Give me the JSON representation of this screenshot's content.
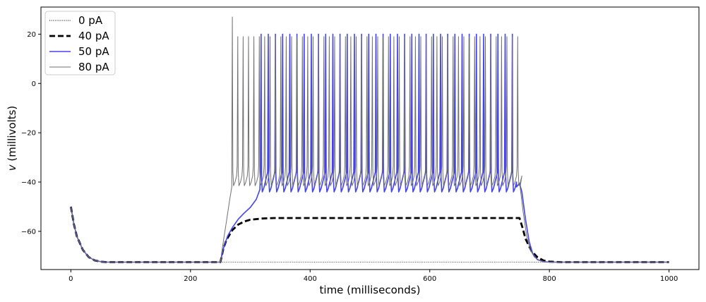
{
  "chart_data": {
    "type": "line",
    "xlabel": "time (milliseconds)",
    "ylabel_italic": "v",
    "ylabel_rest": " (millivolts)",
    "xlim": [
      -50,
      1050
    ],
    "ylim": [
      -75.5,
      31
    ],
    "xticks": [
      0,
      200,
      400,
      600,
      800,
      1000
    ],
    "yticks": [
      20,
      0,
      -20,
      -40,
      -60
    ],
    "grid": false,
    "legend_position": "top-left",
    "stimulus_on": 250,
    "stimulus_off": 750,
    "resting_potential": -72.5,
    "series": [
      {
        "name": "0 pA",
        "style": "dotted",
        "color": "#000000",
        "width": 0.8,
        "points": [
          [
            0,
            -50
          ],
          [
            5,
            -57
          ],
          [
            10,
            -62
          ],
          [
            20,
            -67.5
          ],
          [
            30,
            -70.5
          ],
          [
            40,
            -71.8
          ],
          [
            50,
            -72.3
          ],
          [
            60,
            -72.5
          ],
          [
            1000,
            -72.5
          ]
        ]
      },
      {
        "name": "40 pA",
        "style": "dashed",
        "color": "#000000",
        "width": 2.8,
        "points": [
          [
            0,
            -50
          ],
          [
            5,
            -57
          ],
          [
            10,
            -62
          ],
          [
            20,
            -67.5
          ],
          [
            30,
            -70.5
          ],
          [
            40,
            -71.8
          ],
          [
            50,
            -72.3
          ],
          [
            60,
            -72.5
          ],
          [
            250,
            -72.5
          ],
          [
            255,
            -67
          ],
          [
            260,
            -63.5
          ],
          [
            270,
            -59.5
          ],
          [
            280,
            -57.2
          ],
          [
            290,
            -56
          ],
          [
            300,
            -55.3
          ],
          [
            320,
            -54.8
          ],
          [
            340,
            -54.6
          ],
          [
            750,
            -54.6
          ],
          [
            755,
            -58.5
          ],
          [
            760,
            -63
          ],
          [
            770,
            -68
          ],
          [
            780,
            -70.5
          ],
          [
            790,
            -71.8
          ],
          [
            800,
            -72.3
          ],
          [
            820,
            -72.5
          ],
          [
            1000,
            -72.5
          ]
        ]
      },
      {
        "name": "50 pA",
        "style": "solid",
        "color": "#4444ee",
        "width": 1.6,
        "spike_times": [
          318,
          330,
          342,
          354,
          366,
          378,
          390,
          402,
          414,
          426,
          438,
          450,
          462,
          474,
          486,
          498,
          510,
          522,
          534,
          546,
          558,
          570,
          582,
          594,
          606,
          618,
          630,
          642,
          654,
          666,
          678,
          690,
          702,
          714,
          726,
          738
        ],
        "spike_peak": 20,
        "spike_trough": -44,
        "pre_points": [
          [
            0,
            -50
          ],
          [
            5,
            -57
          ],
          [
            10,
            -62
          ],
          [
            20,
            -67.5
          ],
          [
            30,
            -70.5
          ],
          [
            40,
            -71.8
          ],
          [
            50,
            -72.3
          ],
          [
            60,
            -72.5
          ],
          [
            250,
            -72.5
          ],
          [
            255,
            -67
          ],
          [
            262,
            -62
          ],
          [
            270,
            -58.5
          ],
          [
            280,
            -55
          ],
          [
            290,
            -52.5
          ],
          [
            300,
            -50.3
          ],
          [
            310,
            -47
          ],
          [
            316,
            -43
          ]
        ],
        "post_points": [
          [
            745,
            -42
          ],
          [
            750,
            -40.5
          ],
          [
            754,
            -44
          ],
          [
            760,
            -55
          ],
          [
            766,
            -64
          ],
          [
            772,
            -69
          ],
          [
            780,
            -71.5
          ],
          [
            790,
            -72.3
          ],
          [
            800,
            -72.5
          ],
          [
            1000,
            -72.5
          ]
        ]
      },
      {
        "name": "80 pA",
        "style": "solid",
        "color": "#707070",
        "width": 1.0,
        "spike_times": [
          270,
          279,
          288,
          297,
          306,
          315,
          324,
          333,
          342,
          351,
          360,
          369,
          378,
          387,
          396,
          405,
          414,
          423,
          432,
          441,
          450,
          459,
          468,
          477,
          486,
          495,
          504,
          513,
          522,
          531,
          540,
          549,
          558,
          567,
          576,
          585,
          594,
          603,
          612,
          621,
          630,
          639,
          648,
          657,
          666,
          675,
          684,
          693,
          702,
          711,
          720,
          729,
          738,
          747
        ],
        "first_spike_peak": 27,
        "spike_peak": 19,
        "spike_trough": -41.5,
        "pre_points": [
          [
            0,
            -50
          ],
          [
            5,
            -57
          ],
          [
            10,
            -62
          ],
          [
            20,
            -67.5
          ],
          [
            30,
            -70.5
          ],
          [
            40,
            -71.8
          ],
          [
            50,
            -72.3
          ],
          [
            60,
            -72.5
          ],
          [
            250,
            -72.5
          ],
          [
            255,
            -64
          ],
          [
            260,
            -56
          ],
          [
            265,
            -48
          ],
          [
            269,
            -42
          ]
        ],
        "post_points": [
          [
            751,
            -42
          ],
          [
            756,
            -52
          ],
          [
            762,
            -62
          ],
          [
            768,
            -67.5
          ],
          [
            775,
            -70.5
          ],
          [
            785,
            -72
          ],
          [
            800,
            -72.5
          ],
          [
            1000,
            -72.5
          ]
        ]
      }
    ]
  }
}
